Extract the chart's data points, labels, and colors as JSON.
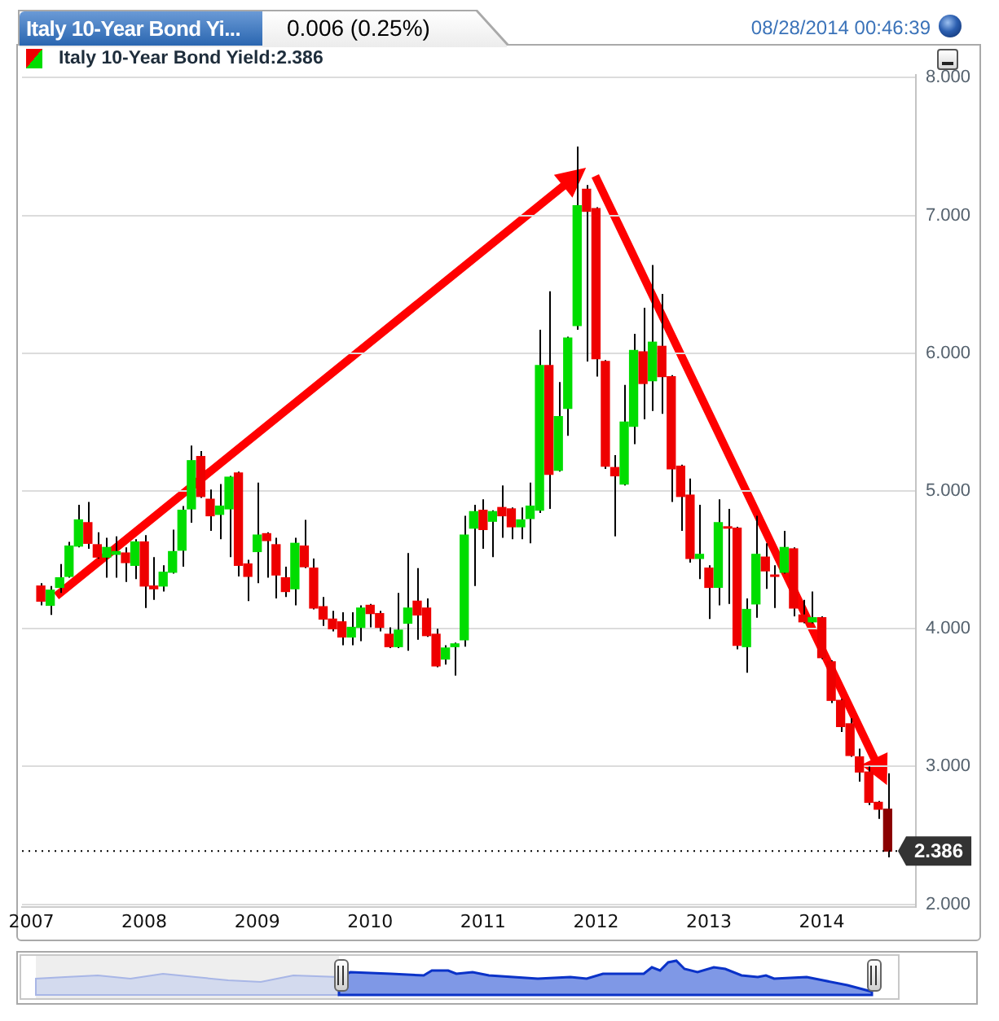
{
  "chart_data": {
    "type": "candlestick",
    "title": "Italy 10-Year Bond Yi...",
    "subtitle": "0.006 (0.25%)",
    "annotations": [
      "08/28/2014 00:46:39"
    ],
    "series": [
      {
        "name": "Italy 10-Year Bond Yield:2.386",
        "x": [
          "2007-02",
          "2007-03",
          "2007-04",
          "2007-05",
          "2007-06",
          "2007-07",
          "2007-08",
          "2007-09",
          "2007-10",
          "2007-11",
          "2007-12",
          "2008-01",
          "2008-02",
          "2008-03",
          "2008-04",
          "2008-05",
          "2008-06",
          "2008-07",
          "2008-08",
          "2008-09",
          "2008-10",
          "2008-11",
          "2008-12",
          "2009-01",
          "2009-02",
          "2009-03",
          "2009-04",
          "2009-05",
          "2009-06",
          "2009-07",
          "2009-08",
          "2009-09",
          "2009-10",
          "2009-11",
          "2009-12",
          "2010-01",
          "2010-02",
          "2010-03",
          "2010-04",
          "2010-05",
          "2010-06",
          "2010-07",
          "2010-08",
          "2010-09",
          "2010-10",
          "2010-11",
          "2010-12",
          "2011-01",
          "2011-02",
          "2011-03",
          "2011-04",
          "2011-05",
          "2011-06",
          "2011-07",
          "2011-08",
          "2011-09",
          "2011-10",
          "2011-11",
          "2011-12",
          "2012-01",
          "2012-02",
          "2012-03",
          "2012-04",
          "2012-05",
          "2012-06",
          "2012-07",
          "2012-08",
          "2012-09",
          "2012-10",
          "2012-11",
          "2012-12",
          "2013-01",
          "2013-02",
          "2013-03",
          "2013-04",
          "2013-05",
          "2013-06",
          "2013-07",
          "2013-08",
          "2013-09",
          "2013-10",
          "2013-11",
          "2013-12",
          "2014-01",
          "2014-02",
          "2014-03",
          "2014-04",
          "2014-05",
          "2014-06",
          "2014-07",
          "2014-08"
        ],
        "ohlc": [
          [
            4.31,
            4.33,
            4.17,
            4.2
          ],
          [
            4.17,
            4.31,
            4.1,
            4.28
          ],
          [
            4.3,
            4.47,
            4.26,
            4.37
          ],
          [
            4.38,
            4.63,
            4.37,
            4.6
          ],
          [
            4.6,
            4.9,
            4.59,
            4.79
          ],
          [
            4.77,
            4.92,
            4.58,
            4.62
          ],
          [
            4.61,
            4.7,
            4.51,
            4.52
          ],
          [
            4.52,
            4.66,
            4.37,
            4.59
          ],
          [
            4.54,
            4.67,
            4.37,
            4.56
          ],
          [
            4.55,
            4.59,
            4.34,
            4.48
          ],
          [
            4.46,
            4.65,
            4.36,
            4.63
          ],
          [
            4.63,
            4.68,
            4.15,
            4.31
          ],
          [
            4.31,
            4.52,
            4.21,
            4.29
          ],
          [
            4.31,
            4.46,
            4.27,
            4.41
          ],
          [
            4.41,
            4.72,
            4.4,
            4.56
          ],
          [
            4.57,
            4.89,
            4.45,
            4.86
          ],
          [
            4.87,
            5.33,
            4.77,
            5.22
          ],
          [
            5.25,
            5.29,
            4.95,
            4.96
          ],
          [
            4.94,
            5.01,
            4.71,
            4.82
          ],
          [
            4.83,
            5.05,
            4.65,
            4.89
          ],
          [
            4.87,
            5.11,
            4.52,
            5.1
          ],
          [
            5.13,
            5.14,
            4.38,
            4.46
          ],
          [
            4.47,
            4.5,
            4.2,
            4.38
          ],
          [
            4.56,
            5.06,
            4.33,
            4.68
          ],
          [
            4.69,
            4.7,
            4.37,
            4.64
          ],
          [
            4.61,
            4.66,
            4.22,
            4.39
          ],
          [
            4.37,
            4.45,
            4.23,
            4.27
          ],
          [
            4.29,
            4.66,
            4.17,
            4.62
          ],
          [
            4.6,
            4.79,
            4.44,
            4.45
          ],
          [
            4.44,
            4.51,
            4.14,
            4.15
          ],
          [
            4.16,
            4.23,
            4.02,
            4.07
          ],
          [
            4.07,
            4.13,
            3.98,
            4.0
          ],
          [
            4.05,
            4.12,
            3.88,
            3.94
          ],
          [
            3.94,
            4.12,
            3.88,
            4.01
          ],
          [
            4.01,
            4.17,
            3.91,
            4.15
          ],
          [
            4.17,
            4.18,
            4.01,
            4.11
          ],
          [
            4.11,
            4.13,
            3.98,
            4.01
          ],
          [
            3.96,
            4.01,
            3.86,
            3.87
          ],
          [
            3.87,
            4.26,
            3.86,
            3.99
          ],
          [
            4.04,
            4.55,
            3.84,
            4.15
          ],
          [
            4.2,
            4.44,
            3.92,
            4.1
          ],
          [
            4.15,
            4.22,
            3.94,
            3.95
          ],
          [
            3.96,
            4.0,
            3.72,
            3.73
          ],
          [
            3.78,
            3.88,
            3.74,
            3.86
          ],
          [
            3.87,
            3.9,
            3.66,
            3.89
          ],
          [
            3.92,
            4.82,
            3.87,
            4.68
          ],
          [
            4.73,
            4.9,
            4.31,
            4.85
          ],
          [
            4.86,
            4.94,
            4.58,
            4.72
          ],
          [
            4.78,
            4.86,
            4.52,
            4.85
          ],
          [
            4.88,
            5.04,
            4.66,
            4.82
          ],
          [
            4.87,
            4.88,
            4.65,
            4.74
          ],
          [
            4.74,
            4.88,
            4.65,
            4.79
          ],
          [
            4.8,
            5.06,
            4.62,
            4.89
          ],
          [
            4.86,
            6.17,
            4.84,
            5.91
          ],
          [
            5.91,
            6.45,
            4.87,
            5.12
          ],
          [
            5.15,
            5.79,
            5.14,
            5.54
          ],
          [
            5.6,
            6.12,
            5.4,
            6.11
          ],
          [
            6.2,
            7.5,
            6.17,
            7.07
          ],
          [
            7.19,
            7.22,
            5.94,
            7.03
          ],
          [
            7.05,
            7.06,
            5.83,
            5.96
          ],
          [
            5.94,
            5.95,
            5.16,
            5.18
          ],
          [
            5.17,
            5.26,
            4.67,
            5.11
          ],
          [
            5.05,
            5.77,
            5.04,
            5.5
          ],
          [
            5.47,
            6.14,
            5.34,
            6.02
          ],
          [
            6.01,
            6.33,
            5.52,
            5.78
          ],
          [
            5.8,
            6.64,
            5.58,
            6.08
          ],
          [
            6.05,
            6.43,
            5.56,
            5.83
          ],
          [
            5.83,
            5.84,
            4.92,
            5.16
          ],
          [
            5.18,
            5.19,
            4.71,
            4.96
          ],
          [
            4.97,
            5.09,
            4.48,
            4.51
          ],
          [
            4.51,
            4.9,
            4.36,
            4.54
          ],
          [
            4.44,
            4.46,
            4.07,
            4.3
          ],
          [
            4.3,
            4.94,
            4.17,
            4.77
          ],
          [
            4.74,
            4.87,
            4.18,
            4.73
          ],
          [
            4.73,
            4.74,
            3.85,
            3.88
          ],
          [
            3.87,
            4.22,
            3.68,
            4.14
          ],
          [
            4.18,
            4.82,
            4.08,
            4.54
          ],
          [
            4.52,
            4.62,
            4.29,
            4.42
          ],
          [
            4.39,
            4.46,
            4.15,
            4.38
          ],
          [
            4.41,
            4.71,
            4.4,
            4.59
          ],
          [
            4.58,
            4.59,
            4.09,
            4.15
          ],
          [
            4.1,
            4.21,
            4.04,
            4.05
          ],
          [
            4.05,
            4.27,
            4.04,
            4.08
          ],
          [
            4.08,
            4.09,
            3.78,
            3.79
          ],
          [
            3.76,
            3.77,
            3.46,
            3.48
          ],
          [
            3.48,
            3.49,
            3.25,
            3.29
          ],
          [
            3.31,
            3.35,
            3.07,
            3.08
          ],
          [
            3.07,
            3.13,
            2.89,
            2.96
          ],
          [
            2.96,
            3.0,
            2.72,
            2.74
          ],
          [
            2.74,
            2.75,
            2.62,
            2.69
          ],
          [
            2.69,
            2.95,
            2.34,
            2.386
          ]
        ],
        "colors": [
          "#ee0000",
          "#00dd00",
          "#00dd00",
          "#00dd00",
          "#00dd00",
          "#ee0000",
          "#ee0000",
          "#00dd00",
          "#00dd00",
          "#ee0000",
          "#00dd00",
          "#ee0000",
          "#ee0000",
          "#00dd00",
          "#00dd00",
          "#00dd00",
          "#00dd00",
          "#ee0000",
          "#ee0000",
          "#00dd00",
          "#00dd00",
          "#ee0000",
          "#ee0000",
          "#00dd00",
          "#ee0000",
          "#ee0000",
          "#ee0000",
          "#00dd00",
          "#ee0000",
          "#ee0000",
          "#ee0000",
          "#ee0000",
          "#ee0000",
          "#00dd00",
          "#00dd00",
          "#ee0000",
          "#ee0000",
          "#ee0000",
          "#00dd00",
          "#00dd00",
          "#ee0000",
          "#ee0000",
          "#ee0000",
          "#00dd00",
          "#00dd00",
          "#00dd00",
          "#00dd00",
          "#ee0000",
          "#00dd00",
          "#ee0000",
          "#ee0000",
          "#00dd00",
          "#00dd00",
          "#00dd00",
          "#ee0000",
          "#00dd00",
          "#00dd00",
          "#00dd00",
          "#ee0000",
          "#ee0000",
          "#ee0000",
          "#ee0000",
          "#00dd00",
          "#00dd00",
          "#ee0000",
          "#00dd00",
          "#ee0000",
          "#ee0000",
          "#ee0000",
          "#ee0000",
          "#00dd00",
          "#ee0000",
          "#00dd00",
          "#ee0000",
          "#ee0000",
          "#00dd00",
          "#00dd00",
          "#ee0000",
          "#ee0000",
          "#00dd00",
          "#ee0000",
          "#ee0000",
          "#00dd00",
          "#ee0000",
          "#ee0000",
          "#ee0000",
          "#ee0000",
          "#ee0000",
          "#ee0000",
          "#ee0000",
          "#8b0000"
        ]
      }
    ],
    "xlim": [
      "2006-12",
      "2014-11"
    ],
    "xticks": [
      "2007",
      "2008",
      "2009",
      "2010",
      "2011",
      "2012",
      "2013",
      "2014"
    ],
    "ylim": [
      1.98,
      8.02
    ],
    "yticks": [
      {
        "value": 2,
        "label": "2.000"
      },
      {
        "value": 3,
        "label": "3.000"
      },
      {
        "value": 4,
        "label": "4.000"
      },
      {
        "value": 5,
        "label": "5.000"
      },
      {
        "value": 6,
        "label": "6.000"
      },
      {
        "value": 7,
        "label": "7.000"
      },
      {
        "value": 8,
        "label": "8.000"
      }
    ],
    "grid": "y",
    "legend": "top left",
    "ref_lines": [
      {
        "axis": "y",
        "value": 2.386,
        "label": "2.386",
        "color": "#000000",
        "line_style": "dotted"
      }
    ]
  }
}
